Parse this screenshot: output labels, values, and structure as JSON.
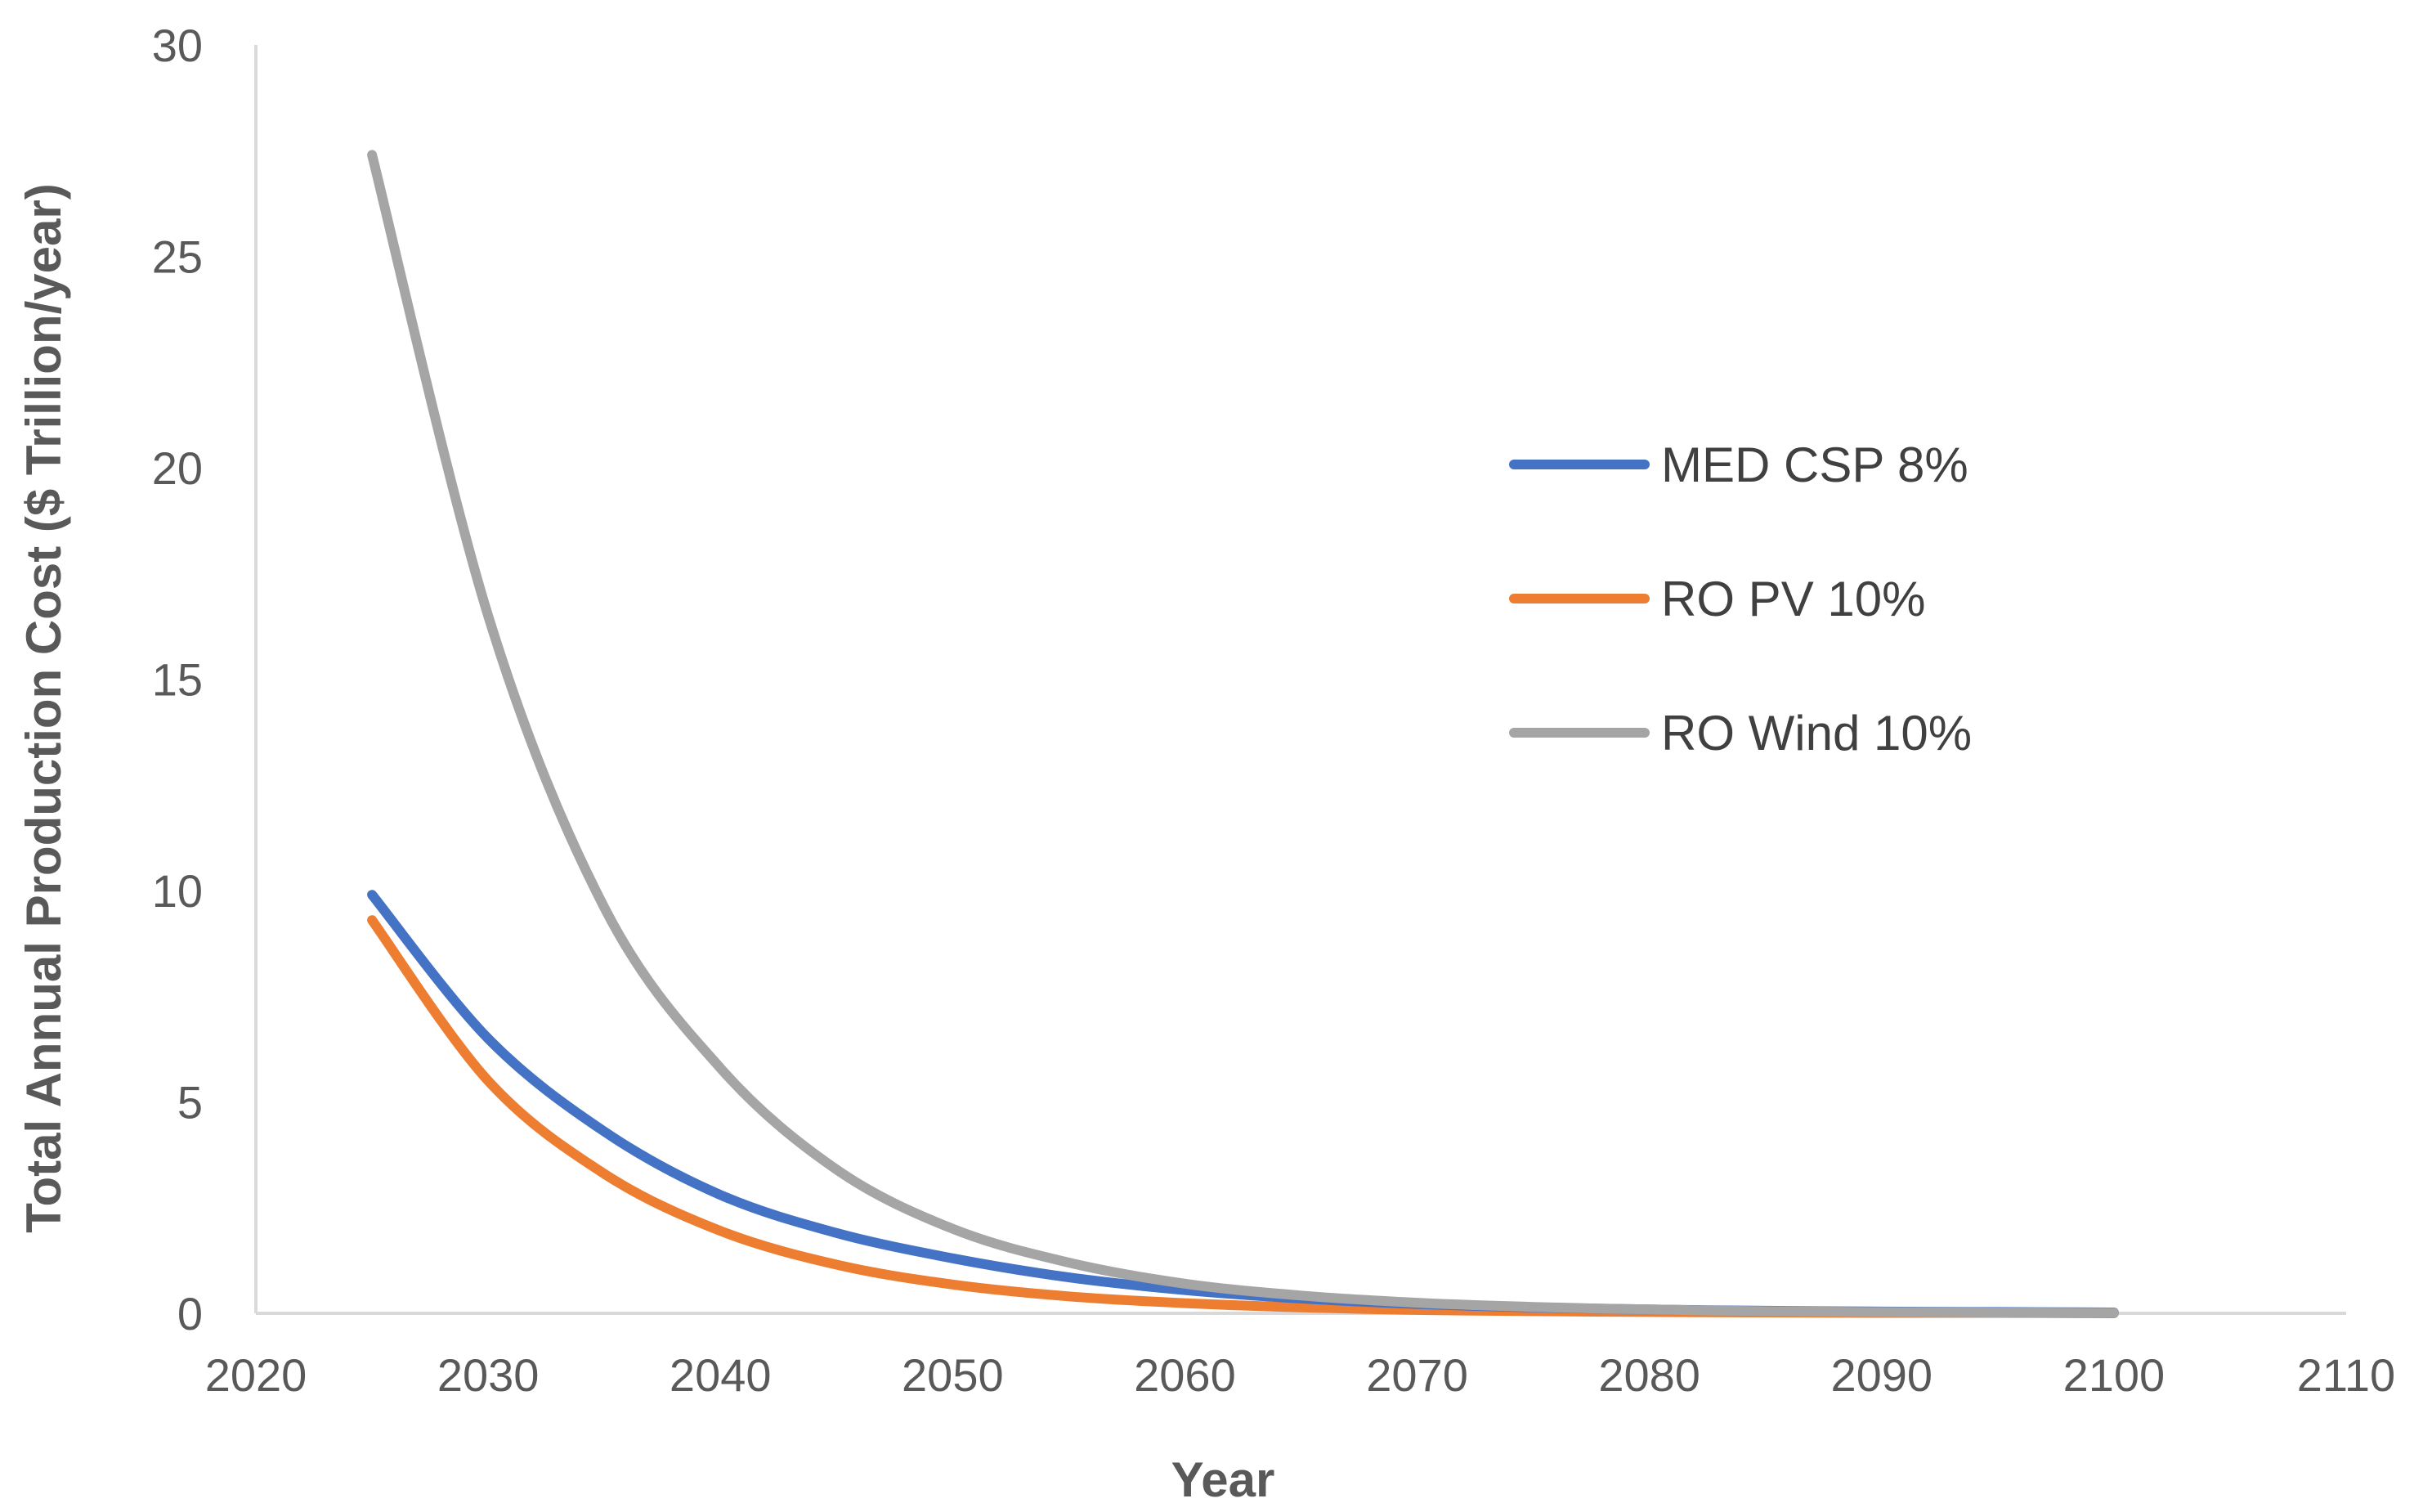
{
  "chart_data": {
    "type": "line",
    "title": "",
    "xlabel": "Year",
    "ylabel": "Total Annual Production Cost ($ Trillion/year)",
    "xlim": [
      2020,
      2110
    ],
    "ylim": [
      0,
      30
    ],
    "xticks": [
      2020,
      2030,
      2040,
      2050,
      2060,
      2070,
      2080,
      2090,
      2100,
      2110
    ],
    "yticks": [
      0,
      5,
      10,
      15,
      20,
      25,
      30
    ],
    "xtick_labels": [
      "2020",
      "2030",
      "2040",
      "2050",
      "2060",
      "2070",
      "2080",
      "2090",
      "2100",
      "2110"
    ],
    "ytick_labels": [
      "0",
      "5",
      "10",
      "15",
      "20",
      "25",
      "30"
    ],
    "grid": false,
    "legend_position": "right",
    "series": [
      {
        "name": "MED CSP 8%",
        "color": "#4472C4",
        "x": [
          2025,
          2030,
          2035,
          2040,
          2045,
          2050,
          2055,
          2060,
          2065,
          2070,
          2075,
          2080,
          2085,
          2090,
          2095,
          2100
        ],
        "values": [
          9.9,
          6.5,
          4.3,
          2.8,
          1.9,
          1.3,
          0.85,
          0.55,
          0.35,
          0.22,
          0.14,
          0.09,
          0.06,
          0.04,
          0.03,
          0.02
        ]
      },
      {
        "name": "RO PV 10%",
        "color": "#ED7D31",
        "x": [
          2025,
          2030,
          2035,
          2040,
          2045,
          2050,
          2055,
          2060,
          2065,
          2070,
          2075,
          2080,
          2085,
          2090,
          2095,
          2100
        ],
        "values": [
          9.3,
          5.5,
          3.3,
          1.95,
          1.15,
          0.68,
          0.4,
          0.24,
          0.14,
          0.08,
          0.05,
          0.03,
          0.02,
          0.01,
          0.01,
          0.0
        ]
      },
      {
        "name": "RO Wind 10%",
        "color": "#A5A5A5",
        "x": [
          2025,
          2030,
          2035,
          2040,
          2045,
          2050,
          2055,
          2060,
          2065,
          2070,
          2075,
          2080,
          2085,
          2090,
          2095,
          2100
        ],
        "values": [
          27.4,
          16.5,
          9.6,
          5.8,
          3.4,
          2.0,
          1.2,
          0.7,
          0.42,
          0.25,
          0.15,
          0.09,
          0.05,
          0.03,
          0.02,
          0.01
        ]
      }
    ]
  }
}
